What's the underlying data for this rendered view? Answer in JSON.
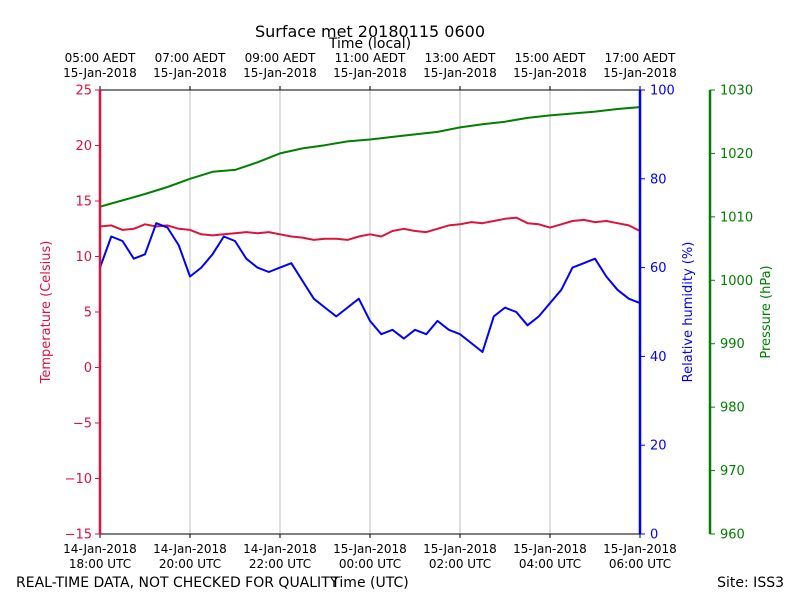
{
  "chart_data": {
    "type": "line",
    "title": "Surface met 20180115 0600",
    "top_axis_label": "Time (local)",
    "xlabel": "Time (UTC)",
    "footer_left": "REAL-TIME DATA, NOT CHECKED FOR QUALITY",
    "footer_right": "Site: ISS3",
    "grid": "vertical",
    "x_ticks_utc": [
      [
        "14-Jan-2018",
        "18:00 UTC"
      ],
      [
        "14-Jan-2018",
        "20:00 UTC"
      ],
      [
        "14-Jan-2018",
        "22:00 UTC"
      ],
      [
        "15-Jan-2018",
        "00:00 UTC"
      ],
      [
        "15-Jan-2018",
        "02:00 UTC"
      ],
      [
        "15-Jan-2018",
        "04:00 UTC"
      ],
      [
        "15-Jan-2018",
        "06:00 UTC"
      ]
    ],
    "x_ticks_local": [
      [
        "05:00 AEDT",
        "15-Jan-2018"
      ],
      [
        "07:00 AEDT",
        "15-Jan-2018"
      ],
      [
        "09:00 AEDT",
        "15-Jan-2018"
      ],
      [
        "11:00 AEDT",
        "15-Jan-2018"
      ],
      [
        "13:00 AEDT",
        "15-Jan-2018"
      ],
      [
        "15:00 AEDT",
        "15-Jan-2018"
      ],
      [
        "17:00 AEDT",
        "15-Jan-2018"
      ]
    ],
    "x_range": [
      "2018-01-14 18:00 UTC",
      "2018-01-15 06:00 UTC"
    ],
    "axes": [
      {
        "label": "Temperature (Celsius)",
        "color": "#dc143c",
        "ylim": [
          -15,
          25
        ],
        "ticks": [
          -15,
          -10,
          -5,
          0,
          5,
          10,
          15,
          20,
          25
        ]
      },
      {
        "label": "Relative humidity (%)",
        "color": "#0000ff",
        "ylim": [
          0,
          100
        ],
        "ticks": [
          0,
          20,
          40,
          60,
          80,
          100
        ]
      },
      {
        "label": "Pressure (hPa)",
        "color": "#008000",
        "ylim": [
          960,
          1030
        ],
        "ticks": [
          960,
          970,
          980,
          990,
          1000,
          1010,
          1020,
          1030
        ]
      }
    ],
    "series": [
      {
        "axis": 0,
        "color": "#dc143c",
        "x_hours": [
          0,
          0.25,
          0.5,
          0.75,
          1,
          1.25,
          1.5,
          1.75,
          2,
          2.25,
          2.5,
          2.75,
          3,
          3.25,
          3.5,
          3.75,
          4,
          4.25,
          4.5,
          4.75,
          5,
          5.25,
          5.5,
          5.75,
          6,
          6.25,
          6.5,
          6.75,
          7,
          7.25,
          7.5,
          7.75,
          8,
          8.25,
          8.5,
          8.75,
          9,
          9.25,
          9.5,
          9.75,
          10,
          10.25,
          10.5,
          10.75,
          11,
          11.25,
          11.5,
          11.75,
          12
        ],
        "values": [
          12.7,
          12.8,
          12.4,
          12.5,
          12.9,
          12.7,
          12.8,
          12.5,
          12.4,
          12.0,
          11.9,
          12.0,
          12.1,
          12.2,
          12.1,
          12.2,
          12.0,
          11.8,
          11.7,
          11.5,
          11.6,
          11.6,
          11.5,
          11.8,
          12.0,
          11.8,
          12.3,
          12.5,
          12.3,
          12.2,
          12.5,
          12.8,
          12.9,
          13.1,
          13.0,
          13.2,
          13.4,
          13.5,
          13.0,
          12.9,
          12.6,
          12.9,
          13.2,
          13.3,
          13.1,
          13.2,
          13.0,
          12.8,
          12.3
        ]
      },
      {
        "axis": 1,
        "color": "#0000ff",
        "x_hours": [
          0,
          0.25,
          0.5,
          0.75,
          1,
          1.25,
          1.5,
          1.75,
          2,
          2.25,
          2.5,
          2.75,
          3,
          3.25,
          3.5,
          3.75,
          4,
          4.25,
          4.5,
          4.75,
          5,
          5.25,
          5.5,
          5.75,
          6,
          6.25,
          6.5,
          6.75,
          7,
          7.25,
          7.5,
          7.75,
          8,
          8.25,
          8.5,
          8.75,
          9,
          9.25,
          9.5,
          9.75,
          10,
          10.25,
          10.5,
          10.75,
          11,
          11.25,
          11.5,
          11.75,
          12
        ],
        "values": [
          60,
          67,
          66,
          62,
          63,
          70,
          69,
          65,
          58,
          60,
          63,
          67,
          66,
          62,
          60,
          59,
          60,
          61,
          57,
          53,
          51,
          49,
          51,
          53,
          48,
          45,
          46,
          44,
          46,
          45,
          48,
          46,
          45,
          43,
          41,
          49,
          51,
          50,
          47,
          49,
          52,
          55,
          60,
          61,
          62,
          58,
          55,
          53,
          52
        ]
      },
      {
        "axis": 2,
        "color": "#008000",
        "x_hours": [
          0,
          0.5,
          1,
          1.5,
          2,
          2.5,
          3,
          3.5,
          4,
          4.5,
          5,
          5.5,
          6,
          6.5,
          7,
          7.5,
          8,
          8.5,
          9,
          9.5,
          10,
          10.5,
          11,
          11.5,
          12
        ],
        "values": [
          1011.6,
          1012.6,
          1013.6,
          1014.7,
          1016.0,
          1017.1,
          1017.4,
          1018.6,
          1020.0,
          1020.8,
          1021.3,
          1021.9,
          1022.2,
          1022.6,
          1023.0,
          1023.4,
          1024.1,
          1024.6,
          1025.0,
          1025.6,
          1026.0,
          1026.3,
          1026.6,
          1027.0,
          1027.3
        ]
      }
    ]
  }
}
